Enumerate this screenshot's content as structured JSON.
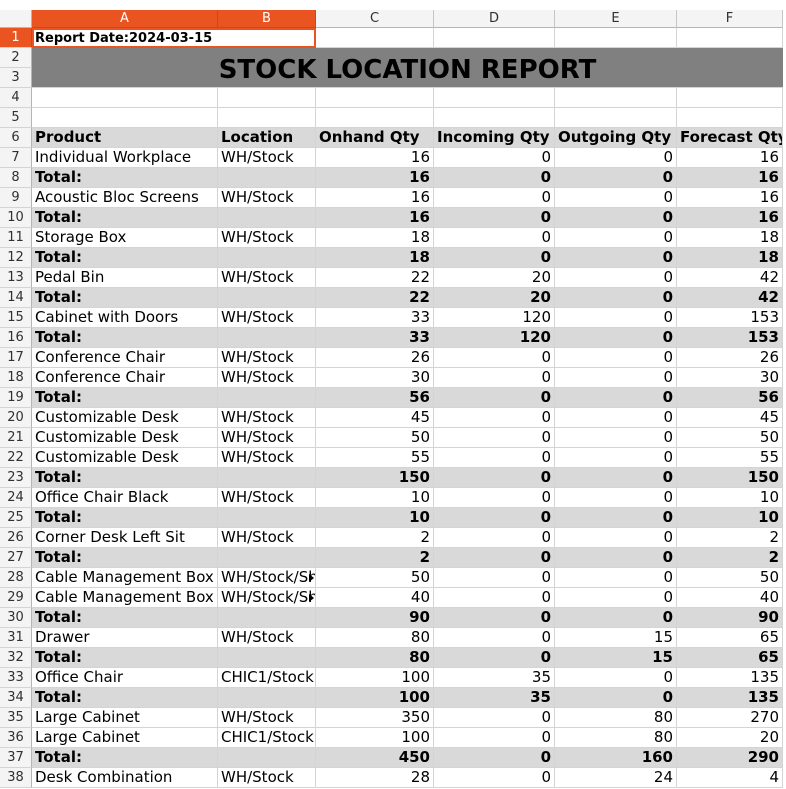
{
  "columns": [
    "A",
    "B",
    "C",
    "D",
    "E",
    "F"
  ],
  "selected_columns": [
    "A",
    "B"
  ],
  "report_date": "Report Date:2024-03-15",
  "title": "STOCK LOCATION REPORT",
  "headers": [
    "Product",
    "Location",
    "Onhand Qty",
    "Incoming Qty",
    "Outgoing Qty",
    "Forecast Qty"
  ],
  "rows": [
    {
      "r": 7,
      "type": "item",
      "product": "Individual Workplace",
      "location": "WH/Stock",
      "onhand": "16",
      "incoming": "0",
      "outgoing": "0",
      "forecast": "16"
    },
    {
      "r": 8,
      "type": "total",
      "product": "Total:",
      "location": "",
      "onhand": "16",
      "incoming": "0",
      "outgoing": "0",
      "forecast": "16"
    },
    {
      "r": 9,
      "type": "item",
      "product": "Acoustic Bloc Screens",
      "location": "WH/Stock",
      "onhand": "16",
      "incoming": "0",
      "outgoing": "0",
      "forecast": "16"
    },
    {
      "r": 10,
      "type": "total",
      "product": "Total:",
      "location": "",
      "onhand": "16",
      "incoming": "0",
      "outgoing": "0",
      "forecast": "16"
    },
    {
      "r": 11,
      "type": "item",
      "product": "Storage Box",
      "location": "WH/Stock",
      "onhand": "18",
      "incoming": "0",
      "outgoing": "0",
      "forecast": "18"
    },
    {
      "r": 12,
      "type": "total",
      "product": "Total:",
      "location": "",
      "onhand": "18",
      "incoming": "0",
      "outgoing": "0",
      "forecast": "18"
    },
    {
      "r": 13,
      "type": "item",
      "product": "Pedal Bin",
      "location": "WH/Stock",
      "onhand": "22",
      "incoming": "20",
      "outgoing": "0",
      "forecast": "42"
    },
    {
      "r": 14,
      "type": "total",
      "product": "Total:",
      "location": "",
      "onhand": "22",
      "incoming": "20",
      "outgoing": "0",
      "forecast": "42"
    },
    {
      "r": 15,
      "type": "item",
      "product": "Cabinet with Doors",
      "location": "WH/Stock",
      "onhand": "33",
      "incoming": "120",
      "outgoing": "0",
      "forecast": "153"
    },
    {
      "r": 16,
      "type": "total",
      "product": "Total:",
      "location": "",
      "onhand": "33",
      "incoming": "120",
      "outgoing": "0",
      "forecast": "153"
    },
    {
      "r": 17,
      "type": "item",
      "product": "Conference Chair",
      "location": "WH/Stock",
      "onhand": "26",
      "incoming": "0",
      "outgoing": "0",
      "forecast": "26"
    },
    {
      "r": 18,
      "type": "item",
      "product": "Conference Chair",
      "location": "WH/Stock",
      "onhand": "30",
      "incoming": "0",
      "outgoing": "0",
      "forecast": "30"
    },
    {
      "r": 19,
      "type": "total",
      "product": "Total:",
      "location": "",
      "onhand": "56",
      "incoming": "0",
      "outgoing": "0",
      "forecast": "56"
    },
    {
      "r": 20,
      "type": "item",
      "product": "Customizable Desk",
      "location": "WH/Stock",
      "onhand": "45",
      "incoming": "0",
      "outgoing": "0",
      "forecast": "45"
    },
    {
      "r": 21,
      "type": "item",
      "product": "Customizable Desk",
      "location": "WH/Stock",
      "onhand": "50",
      "incoming": "0",
      "outgoing": "0",
      "forecast": "50"
    },
    {
      "r": 22,
      "type": "item",
      "product": "Customizable Desk",
      "location": "WH/Stock",
      "onhand": "55",
      "incoming": "0",
      "outgoing": "0",
      "forecast": "55"
    },
    {
      "r": 23,
      "type": "total",
      "product": "Total:",
      "location": "",
      "onhand": "150",
      "incoming": "0",
      "outgoing": "0",
      "forecast": "150"
    },
    {
      "r": 24,
      "type": "item",
      "product": "Office Chair Black",
      "location": "WH/Stock",
      "onhand": "10",
      "incoming": "0",
      "outgoing": "0",
      "forecast": "10"
    },
    {
      "r": 25,
      "type": "total",
      "product": "Total:",
      "location": "",
      "onhand": "10",
      "incoming": "0",
      "outgoing": "0",
      "forecast": "10"
    },
    {
      "r": 26,
      "type": "item",
      "product": "Corner Desk Left Sit",
      "location": "WH/Stock",
      "onhand": "2",
      "incoming": "0",
      "outgoing": "0",
      "forecast": "2"
    },
    {
      "r": 27,
      "type": "total",
      "product": "Total:",
      "location": "",
      "onhand": "2",
      "incoming": "0",
      "outgoing": "0",
      "forecast": "2"
    },
    {
      "r": 28,
      "type": "item",
      "product": "Cable Management Box",
      "location": "WH/Stock/Sh",
      "overflow": true,
      "onhand": "50",
      "incoming": "0",
      "outgoing": "0",
      "forecast": "50"
    },
    {
      "r": 29,
      "type": "item",
      "product": "Cable Management Box",
      "location": "WH/Stock/Sh",
      "overflow": true,
      "onhand": "40",
      "incoming": "0",
      "outgoing": "0",
      "forecast": "40"
    },
    {
      "r": 30,
      "type": "total",
      "product": "Total:",
      "location": "",
      "onhand": "90",
      "incoming": "0",
      "outgoing": "0",
      "forecast": "90"
    },
    {
      "r": 31,
      "type": "item",
      "product": "Drawer",
      "location": "WH/Stock",
      "onhand": "80",
      "incoming": "0",
      "outgoing": "15",
      "forecast": "65"
    },
    {
      "r": 32,
      "type": "total",
      "product": "Total:",
      "location": "",
      "onhand": "80",
      "incoming": "0",
      "outgoing": "15",
      "forecast": "65"
    },
    {
      "r": 33,
      "type": "item",
      "product": "Office Chair",
      "location": "CHIC1/Stock",
      "onhand": "100",
      "incoming": "35",
      "outgoing": "0",
      "forecast": "135"
    },
    {
      "r": 34,
      "type": "total",
      "product": "Total:",
      "location": "",
      "onhand": "100",
      "incoming": "35",
      "outgoing": "0",
      "forecast": "135"
    },
    {
      "r": 35,
      "type": "item",
      "product": "Large Cabinet",
      "location": "WH/Stock",
      "onhand": "350",
      "incoming": "0",
      "outgoing": "80",
      "forecast": "270"
    },
    {
      "r": 36,
      "type": "item",
      "product": "Large Cabinet",
      "location": "CHIC1/Stock",
      "onhand": "100",
      "incoming": "0",
      "outgoing": "80",
      "forecast": "20"
    },
    {
      "r": 37,
      "type": "total",
      "product": "Total:",
      "location": "",
      "onhand": "450",
      "incoming": "0",
      "outgoing": "160",
      "forecast": "290"
    },
    {
      "r": 38,
      "type": "item",
      "product": "Desk Combination",
      "location": "WH/Stock",
      "onhand": "28",
      "incoming": "0",
      "outgoing": "24",
      "forecast": "4"
    }
  ]
}
